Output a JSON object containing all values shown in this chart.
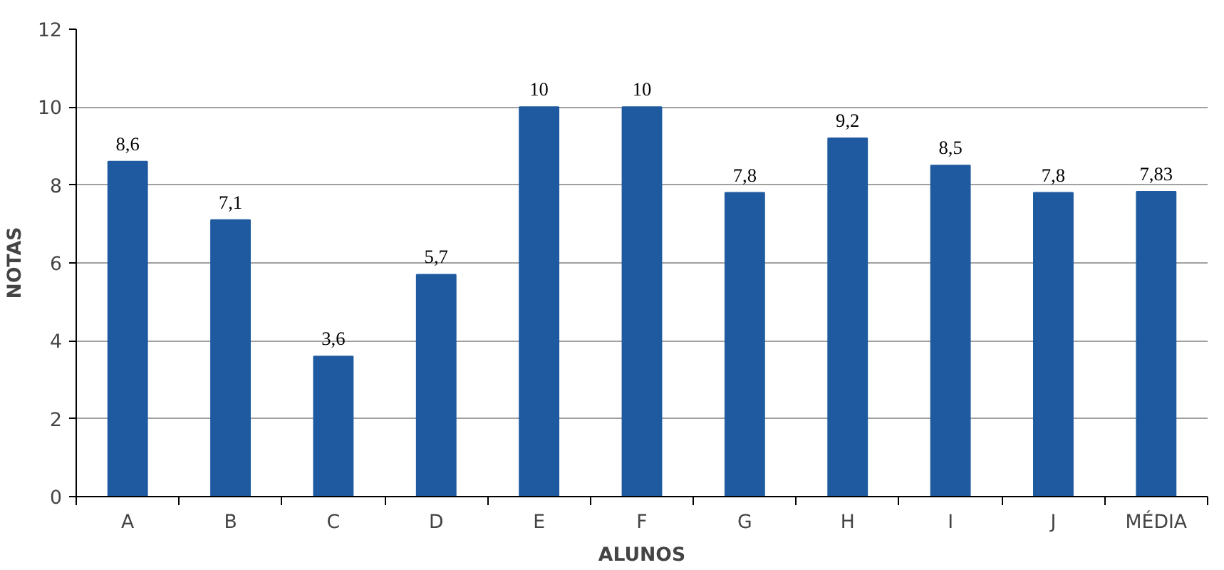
{
  "chart_data": {
    "type": "bar",
    "xlabel": "ALUNOS",
    "ylabel": "NOTAS",
    "categories": [
      "A",
      "B",
      "C",
      "D",
      "E",
      "F",
      "G",
      "H",
      "I",
      "J",
      "MÉDIA"
    ],
    "values": [
      8.6,
      7.1,
      3.6,
      5.7,
      10,
      10,
      7.8,
      9.2,
      8.5,
      7.8,
      7.83
    ],
    "value_labels": [
      "8,6",
      "7,1",
      "3,6",
      "5,7",
      "10",
      "10",
      "7,8",
      "9,2",
      "8,5",
      "7,8",
      "7,83"
    ],
    "color": "#1f5aa0",
    "ylim": [
      0,
      12
    ],
    "yticks": [
      0,
      2,
      4,
      6,
      8,
      10,
      12
    ],
    "grid": "y"
  }
}
